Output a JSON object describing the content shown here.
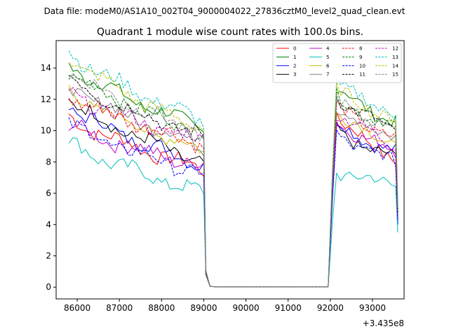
{
  "chart_data": {
    "type": "line",
    "suptitle": "Data file: modeM0/AS1A10_002T04_9000004022_27836cztM0_level2_quad_clean.evt",
    "title": "Quadrant 1 module wise count rates with 100.0s bins.",
    "xlabel": "",
    "ylabel": "",
    "x_offset_label": "+3.435e8",
    "xlim": [
      85500,
      93750
    ],
    "ylim": [
      -0.75,
      15.75
    ],
    "x_ticks": [
      86000,
      87000,
      88000,
      89000,
      90000,
      91000,
      92000,
      93000
    ],
    "x_tick_labels": [
      "86000",
      "87000",
      "88000",
      "89000",
      "90000",
      "91000",
      "92000",
      "93000"
    ],
    "y_ticks": [
      0,
      2,
      4,
      6,
      8,
      10,
      12,
      14
    ],
    "y_tick_labels": [
      "0",
      "2",
      "4",
      "6",
      "8",
      "10",
      "12",
      "14"
    ],
    "legend_position": "top-right",
    "legend_columns": 4,
    "gti": {
      "seg1_start": 85800,
      "seg1_end": 89000,
      "tail_x": [
        89050,
        89150
      ],
      "tail_y": [
        0.8,
        0.05
      ],
      "gap_start": 89150,
      "gap_end": 91950,
      "gap_value": 0.03,
      "seg2_start": 92050,
      "seg2_end": 93550,
      "step": 100
    },
    "series": [
      {
        "name": "0",
        "color": "#ff0000",
        "style": "solid",
        "start1": 10.9,
        "end1": 7.5,
        "start2": 11.4,
        "end2": 8.2,
        "last": 4.5
      },
      {
        "name": "1",
        "color": "#008000",
        "style": "solid",
        "start1": 14.3,
        "end1": 10.1,
        "start2": 13.2,
        "end2": 10.5,
        "last": 4.6
      },
      {
        "name": "2",
        "color": "#0000ff",
        "style": "solid",
        "start1": 11.6,
        "end1": 7.8,
        "start2": 10.8,
        "end2": 8.6,
        "last": 4.0
      },
      {
        "name": "3",
        "color": "#000000",
        "style": "solid",
        "start1": 12.0,
        "end1": 7.9,
        "start2": 10.3,
        "end2": 8.2,
        "last": 4.4
      },
      {
        "name": "4",
        "color": "#bf00bf",
        "style": "solid",
        "start1": 10.4,
        "end1": 7.7,
        "start2": 10.9,
        "end2": 8.7,
        "last": 4.4
      },
      {
        "name": "5",
        "color": "#00bfbf",
        "style": "solid",
        "start1": 9.3,
        "end1": 6.0,
        "start2": 7.5,
        "end2": 6.6,
        "last": 3.5
      },
      {
        "name": "6",
        "color": "#bfbf00",
        "style": "solid",
        "start1": 12.6,
        "end1": 8.7,
        "start2": 11.6,
        "end2": 9.1,
        "last": 4.7
      },
      {
        "name": "7",
        "color": "#808080",
        "style": "solid",
        "start1": 13.0,
        "end1": 9.0,
        "start2": 11.8,
        "end2": 9.5,
        "last": 4.5
      },
      {
        "name": "8",
        "color": "#ff0000",
        "style": "dashed",
        "start1": 12.3,
        "end1": 9.1,
        "start2": 11.9,
        "end2": 9.5,
        "last": 4.9
      },
      {
        "name": "9",
        "color": "#008000",
        "style": "dashed",
        "start1": 13.8,
        "end1": 9.8,
        "start2": 12.5,
        "end2": 10.2,
        "last": 5.2
      },
      {
        "name": "10",
        "color": "#0000ff",
        "style": "dashed",
        "start1": 10.5,
        "end1": 7.2,
        "start2": 10.1,
        "end2": 8.0,
        "last": 4.2
      },
      {
        "name": "11",
        "color": "#000000",
        "style": "dashed",
        "start1": 13.4,
        "end1": 9.6,
        "start2": 12.6,
        "end2": 10.0,
        "last": 4.8
      },
      {
        "name": "12",
        "color": "#bf00bf",
        "style": "dashed",
        "start1": 12.4,
        "end1": 9.3,
        "start2": 11.6,
        "end2": 9.2,
        "last": 4.6
      },
      {
        "name": "13",
        "color": "#00bfbf",
        "style": "dashed",
        "start1": 15.1,
        "end1": 10.6,
        "start2": 13.4,
        "end2": 11.1,
        "last": 5.6
      },
      {
        "name": "14",
        "color": "#bfbf00",
        "style": "dashed",
        "start1": 14.8,
        "end1": 10.0,
        "start2": 13.0,
        "end2": 10.7,
        "last": 5.1
      },
      {
        "name": "15",
        "color": "#808080",
        "style": "dashed",
        "start1": 13.9,
        "end1": 9.7,
        "start2": 12.2,
        "end2": 10.2,
        "last": 4.9
      }
    ]
  }
}
